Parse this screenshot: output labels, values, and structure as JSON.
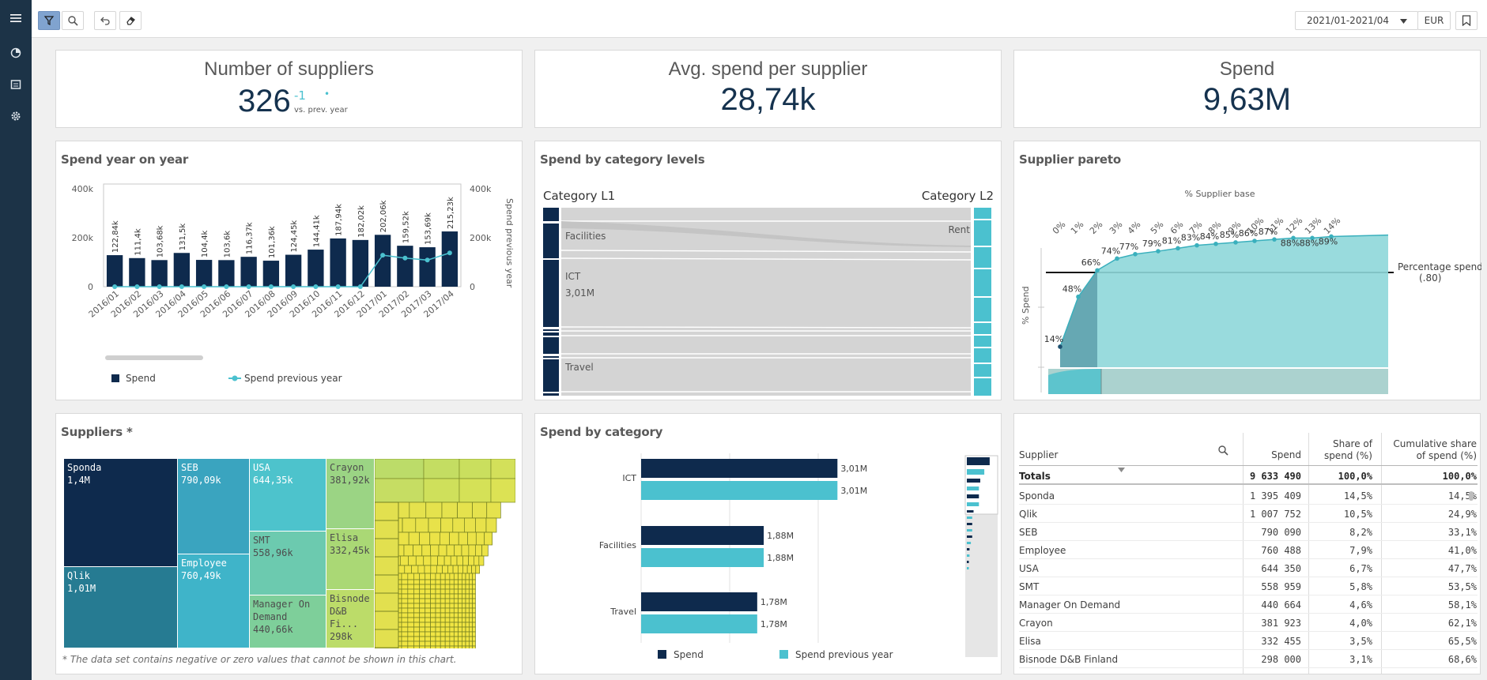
{
  "toolbar": {
    "date_range": "2021/01-2021/04",
    "currency": "EUR"
  },
  "kpis": {
    "suppliers": {
      "label": "Number of suppliers",
      "value": "326",
      "delta": "-1",
      "dot": "•",
      "sub": "vs. prev. year"
    },
    "avg": {
      "label": "Avg. spend per supplier",
      "value": "28,74k"
    },
    "spend": {
      "label": "Spend",
      "value": "9,63M"
    }
  },
  "yoy": {
    "title": "Spend year on year",
    "y_ticks": [
      "400k",
      "200k",
      "0"
    ],
    "y2_ticks": [
      "400k",
      "200k",
      "0"
    ],
    "y2_label": "Spend previous year",
    "legend_spend": "Spend",
    "legend_prev": "Spend previous year",
    "colors": {
      "spend": "#0e2a4d",
      "prev": "#4bc1cf"
    }
  },
  "chart_data": [
    {
      "type": "bar",
      "title": "Spend year on year",
      "categories": [
        "2016/01",
        "2016/02",
        "2016/03",
        "2016/04",
        "2016/05",
        "2016/06",
        "2016/07",
        "2016/08",
        "2016/09",
        "2016/10",
        "2016/11",
        "2016/12",
        "2017/01",
        "2017/02",
        "2017/03",
        "2017/04"
      ],
      "labels": [
        "122,84k",
        "111,4k",
        "103,68k",
        "131,5k",
        "104,4k",
        "103,6k",
        "116,37k",
        "101,36k",
        "124,45k",
        "144,41k",
        "187,94k",
        "182,02k",
        "202,06k",
        "159,52k",
        "153,69k",
        "215,23k"
      ],
      "series": [
        {
          "name": "Spend",
          "values": [
            122840,
            111400,
            103680,
            131500,
            104400,
            103600,
            116370,
            101360,
            124450,
            144410,
            187940,
            182020,
            202060,
            159520,
            153690,
            215230
          ]
        },
        {
          "name": "Spend previous year",
          "values": [
            0,
            0,
            0,
            0,
            0,
            0,
            0,
            0,
            0,
            0,
            0,
            0,
            122840,
            111400,
            103680,
            131500
          ]
        }
      ],
      "ylim": [
        0,
        400000
      ]
    },
    {
      "type": "bar",
      "title": "Spend by category",
      "categories": [
        "ICT",
        "Facilities",
        "Travel"
      ],
      "series": [
        {
          "name": "Spend",
          "values": [
            3.01,
            1.88,
            1.78
          ],
          "labels": [
            "3,01M",
            "1,88M",
            "1,78M"
          ]
        },
        {
          "name": "Spend previous year",
          "values": [
            3.01,
            1.88,
            1.78
          ],
          "labels": [
            "3,01M",
            "1,88M",
            "1,78M"
          ]
        }
      ],
      "xlim": [
        0,
        3.2
      ]
    },
    {
      "type": "area",
      "title": "Supplier pareto",
      "x_axis_title": "% Supplier base",
      "y_axis_title": "% Spend",
      "x_ticks": [
        "0%",
        "1%",
        "2%",
        "3%",
        "4%",
        "5%",
        "6%",
        "7%",
        "8%",
        "9%",
        "10%",
        "11%",
        "12%",
        "13%",
        "14%"
      ],
      "point_labels": [
        "14%",
        "48%",
        "66%",
        "74%",
        "77%",
        "79%",
        "81%",
        "83%",
        "84%",
        "85%",
        "86%",
        "87%",
        "88%",
        "88%",
        "89%"
      ],
      "values": [
        14,
        48,
        66,
        74,
        77,
        79,
        81,
        83,
        84,
        85,
        86,
        87,
        88,
        88,
        89
      ],
      "reference_line": {
        "label": "Percentage spend (.80)",
        "value": 80
      }
    },
    {
      "type": "table",
      "title": "Spend by category levels",
      "levels": [
        "Category L1",
        "Category L2"
      ],
      "l1_nodes": [
        {
          "name": "Facilities"
        },
        {
          "name": "ICT",
          "value": "3,01M"
        },
        {
          "name": "Travel"
        }
      ],
      "l2_nodes": [
        "Rent"
      ]
    }
  ],
  "sankey": {
    "title": "Spend by category levels",
    "l1": "Category L1",
    "l2": "Category L2",
    "facilities": "Facilities",
    "ict": "ICT",
    "ict_val": "3,01M",
    "travel": "Travel",
    "rent": "Rent"
  },
  "pareto": {
    "title": "Supplier pareto",
    "xtitle": "% Supplier base",
    "ytitle": "% Spend",
    "ref1": "Percentage spend",
    "ref2": "(.80)"
  },
  "treemap": {
    "title": "Suppliers *",
    "note": "* The data set contains negative or zero values that cannot be shown in this chart.",
    "tiles": [
      {
        "name": "Sponda",
        "value": "1,4M"
      },
      {
        "name": "Qlik",
        "value": "1,01M"
      },
      {
        "name": "SEB",
        "value": "790,09k"
      },
      {
        "name": "Employee",
        "value": "760,49k"
      },
      {
        "name": "USA",
        "value": "644,35k"
      },
      {
        "name": "SMT",
        "value": "558,96k"
      },
      {
        "name": "Manager On Demand",
        "value": "440,66k"
      },
      {
        "name": "Crayon",
        "value": "381,92k"
      },
      {
        "name": "Elisa",
        "value": "332,45k"
      },
      {
        "name": "Bisnode D&B Fi...",
        "value": "298k"
      }
    ]
  },
  "bycat": {
    "title": "Spend by category",
    "legend_spend": "Spend",
    "legend_prev": "Spend previous year"
  },
  "table": {
    "headers": [
      "Supplier",
      "Spend",
      "Share of spend (%)",
      "Cumulative share of spend (%)"
    ],
    "header_share_1": "Share of",
    "header_share_2": "spend (%)",
    "header_cum_1": "Cumulative share",
    "header_cum_2": "of spend (%)",
    "totals": {
      "label": "Totals",
      "spend": "9 633 490",
      "share": "100,0%",
      "cum": "100,0%"
    },
    "rows": [
      {
        "supplier": "Sponda",
        "spend": "1 395 409",
        "share": "14,5%",
        "cum": "14,5%"
      },
      {
        "supplier": "Qlik",
        "spend": "1 007 752",
        "share": "10,5%",
        "cum": "24,9%"
      },
      {
        "supplier": "SEB",
        "spend": "790 090",
        "share": "8,2%",
        "cum": "33,1%"
      },
      {
        "supplier": "Employee",
        "spend": "760 488",
        "share": "7,9%",
        "cum": "41,0%"
      },
      {
        "supplier": "USA",
        "spend": "644 350",
        "share": "6,7%",
        "cum": "47,7%"
      },
      {
        "supplier": "SMT",
        "spend": "558 959",
        "share": "5,8%",
        "cum": "53,5%"
      },
      {
        "supplier": "Manager On Demand",
        "spend": "440 664",
        "share": "4,6%",
        "cum": "58,1%"
      },
      {
        "supplier": "Crayon",
        "spend": "381 923",
        "share": "4,0%",
        "cum": "62,1%"
      },
      {
        "supplier": "Elisa",
        "spend": "332 455",
        "share": "3,5%",
        "cum": "65,5%"
      },
      {
        "supplier": "Bisnode D&B Finland",
        "spend": "298 000",
        "share": "3,1%",
        "cum": "68,6%"
      }
    ]
  }
}
